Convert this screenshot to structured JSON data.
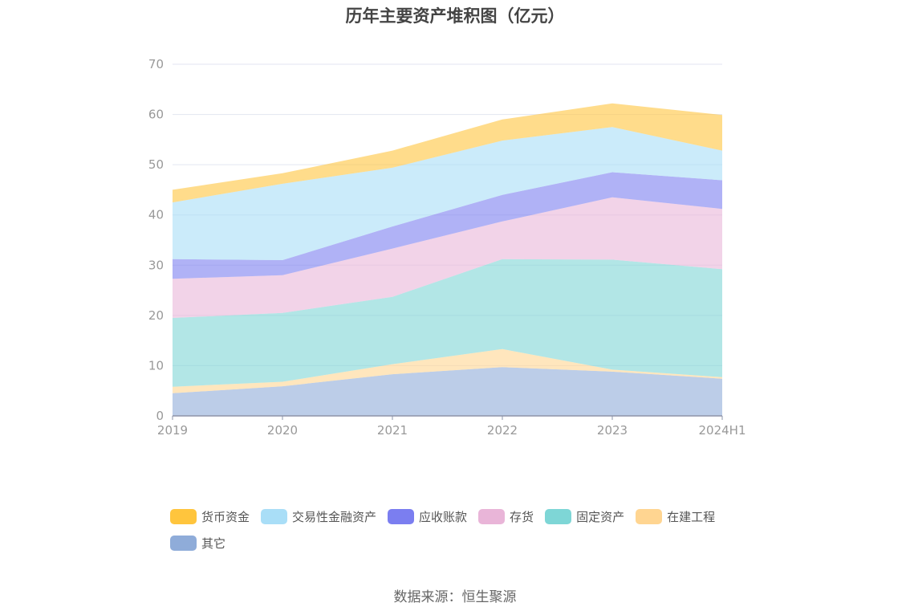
{
  "title": "历年主要资产堆积图（亿元）",
  "source": "数据来源：恒生聚源",
  "chart_data": {
    "type": "area",
    "stacked": true,
    "categories": [
      "2019",
      "2020",
      "2021",
      "2022",
      "2023",
      "2024H1"
    ],
    "ylim": [
      0,
      70
    ],
    "yticks": [
      "0",
      "10",
      "20",
      "30",
      "40",
      "50",
      "60",
      "70"
    ],
    "grid": true,
    "legend_position": "bottom",
    "series": [
      {
        "name": "其它",
        "color": "#8facd9",
        "values": [
          4.5,
          5.9,
          8.3,
          9.7,
          8.8,
          7.4
        ]
      },
      {
        "name": "在建工程",
        "color": "#ffd591",
        "values": [
          1.3,
          0.9,
          2.0,
          3.6,
          0.4,
          0.3
        ]
      },
      {
        "name": "固定资产",
        "color": "#7ed6d6",
        "values": [
          13.7,
          13.7,
          13.4,
          17.9,
          21.9,
          21.5
        ]
      },
      {
        "name": "存货",
        "color": "#e9b5d8",
        "values": [
          7.8,
          7.5,
          9.6,
          7.5,
          12.4,
          12.0
        ]
      },
      {
        "name": "应收账款",
        "color": "#7b7ef0",
        "values": [
          3.9,
          3.0,
          4.4,
          5.3,
          5.0,
          5.7
        ]
      },
      {
        "name": "交易性金融资产",
        "color": "#a9def7",
        "values": [
          11.3,
          15.2,
          11.7,
          10.8,
          9.0,
          5.9
        ]
      },
      {
        "name": "货币资金",
        "color": "#ffc53d",
        "values": [
          2.5,
          2.1,
          3.4,
          4.2,
          4.7,
          7.1
        ]
      }
    ]
  },
  "legend_order": [
    6,
    5,
    4,
    3,
    2,
    1,
    0
  ]
}
